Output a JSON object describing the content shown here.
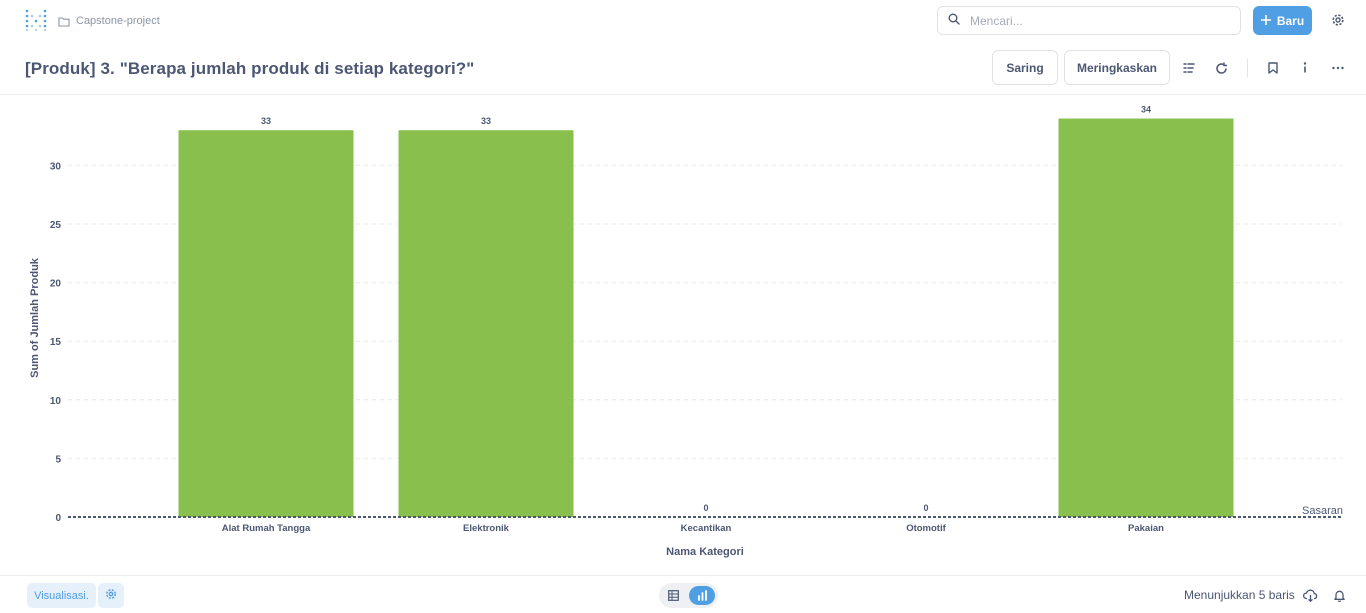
{
  "nav": {
    "breadcrumb": "Capstone-project",
    "search_placeholder": "Mencari...",
    "new_button": "Baru"
  },
  "header": {
    "title": "[Produk] 3. \"Berapa jumlah produk di setiap kategori?\"",
    "filter_button": "Saring",
    "summarize_button": "Meringkaskan"
  },
  "footer": {
    "visualization_button": "Visualisasi.",
    "row_count": "Menunjukkan 5 baris"
  },
  "colors": {
    "accent": "#509ee3",
    "bar": "#88bf4d",
    "text": "#4c5773"
  },
  "chart_data": {
    "type": "bar",
    "categories": [
      "Alat Rumah Tangga",
      "Elektronik",
      "Kecantikan",
      "Otomotif",
      "Pakaian"
    ],
    "values": [
      33,
      33,
      0,
      0,
      34
    ],
    "xlabel": "Nama Kategori",
    "ylabel": "Sum of Jumlah Produk",
    "yticks": [
      0,
      5,
      10,
      15,
      20,
      25,
      30
    ],
    "ylim": [
      0,
      34
    ],
    "goal_label": "Sasaran",
    "goal_value": 0,
    "grid": true
  }
}
